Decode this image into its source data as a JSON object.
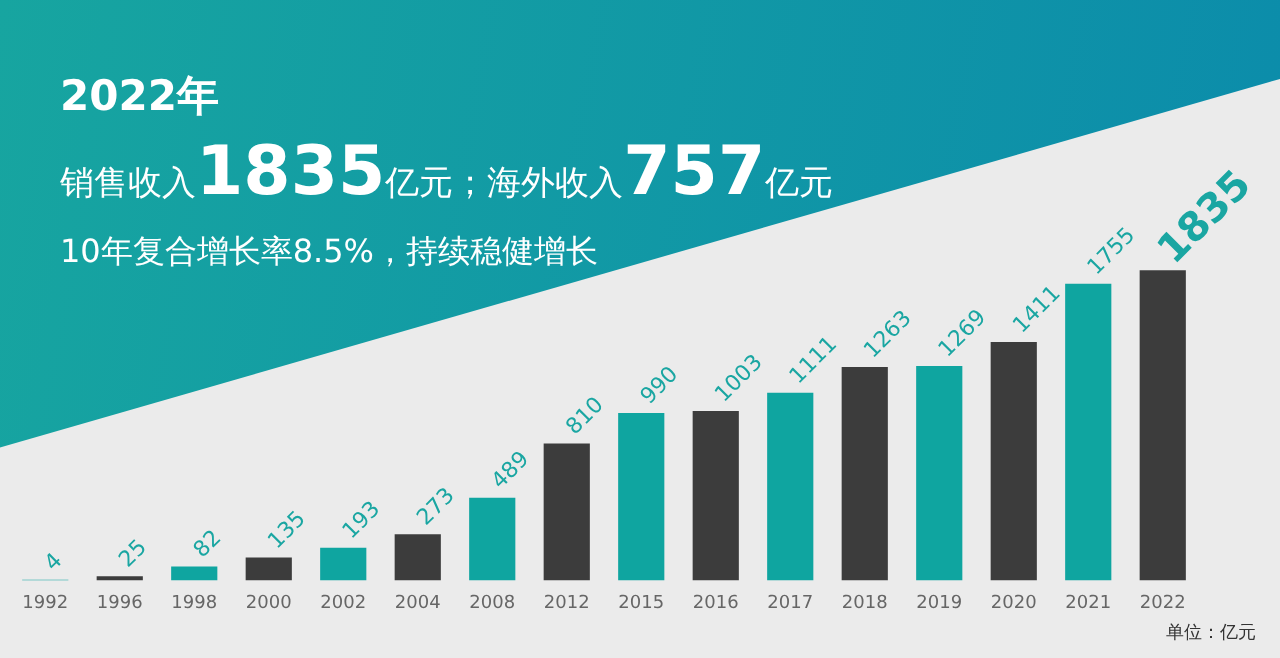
{
  "chart_data": {
    "type": "bar",
    "title": "2022年",
    "subtitle": "销售收入1835亿元；海外收入757亿元",
    "annotations": [
      "10年复合增长率8.5%，持续稳健增长",
      "单位：亿元"
    ],
    "categories": [
      "1992",
      "1996",
      "1998",
      "2000",
      "2002",
      "2004",
      "2008",
      "2012",
      "2015",
      "2016",
      "2017",
      "2018",
      "2019",
      "2020",
      "2021",
      "2022"
    ],
    "values": [
      4,
      25,
      82,
      135,
      193,
      273,
      489,
      810,
      990,
      1003,
      1111,
      1263,
      1269,
      1411,
      1755,
      1835
    ],
    "colors": [
      "#0fa5a0",
      "#3c3c3c",
      "#0fa5a0",
      "#3c3c3c",
      "#0fa5a0",
      "#3c3c3c",
      "#0fa5a0",
      "#3c3c3c",
      "#0fa5a0",
      "#3c3c3c",
      "#0fa5a0",
      "#3c3c3c",
      "#0fa5a0",
      "#3c3c3c",
      "#0fa5a0",
      "#3c3c3c"
    ],
    "data_labels": true,
    "grid": false,
    "legend": false,
    "tick_labels": "x"
  }
}
